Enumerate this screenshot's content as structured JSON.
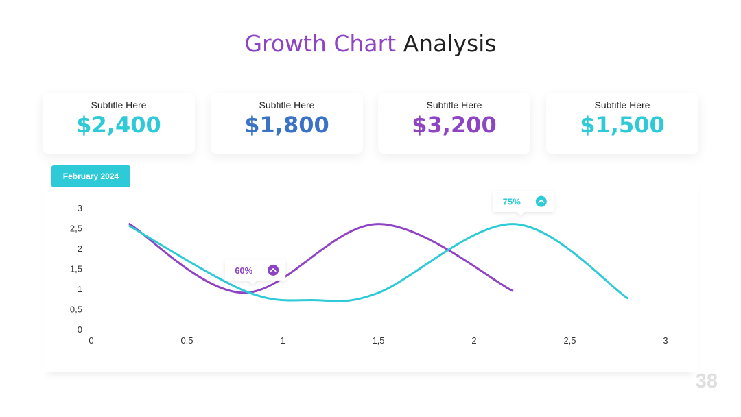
{
  "slide": {
    "title_accent": "Growth Chart",
    "title_rest": "Analysis",
    "page_number": "38",
    "period_label": "February 2024"
  },
  "cards": [
    {
      "subtitle": "Subtitle Here",
      "value": "$2,400",
      "color": "#2ecad7"
    },
    {
      "subtitle": "Subtitle Here",
      "value": "$1,800",
      "color": "#3a72c6"
    },
    {
      "subtitle": "Subtitle Here",
      "value": "$3,200",
      "color": "#8f44c4"
    },
    {
      "subtitle": "Subtitle Here",
      "value": "$1,500",
      "color": "#2ecad7"
    }
  ],
  "colors": {
    "purple": "#8f44c4",
    "cyan": "#2ecad7",
    "accent_pill": "#2ecad7"
  },
  "chart_data": {
    "type": "line",
    "xlim": [
      0,
      3
    ],
    "ylim": [
      0,
      3
    ],
    "x_ticks": [
      "0",
      "0,5",
      "1",
      "1,5",
      "2",
      "2,5",
      "3"
    ],
    "y_ticks": [
      "0",
      "0,5",
      "1",
      "1,5",
      "2",
      "2,5",
      "3"
    ],
    "grid": false,
    "smooth": true,
    "series": [
      {
        "color": "#8f44c4",
        "points": [
          [
            0.2,
            2.6
          ],
          [
            0.8,
            0.9
          ],
          [
            1.5,
            2.6
          ],
          [
            2.2,
            0.95
          ]
        ]
      },
      {
        "color": "#2ecad7",
        "points": [
          [
            0.2,
            2.55
          ],
          [
            0.8,
            0.95
          ],
          [
            1.15,
            0.72
          ],
          [
            1.5,
            0.9
          ],
          [
            2.2,
            2.6
          ],
          [
            2.8,
            0.77
          ]
        ]
      }
    ],
    "annotations": [
      {
        "text": "60%",
        "x": 0.8,
        "y": 0.9,
        "color": "#8f44c4",
        "icon": "chevron-up-icon"
      },
      {
        "text": "75%",
        "x": 2.2,
        "y": 2.6,
        "color": "#2ecad7",
        "icon": "chevron-up-icon"
      }
    ]
  }
}
